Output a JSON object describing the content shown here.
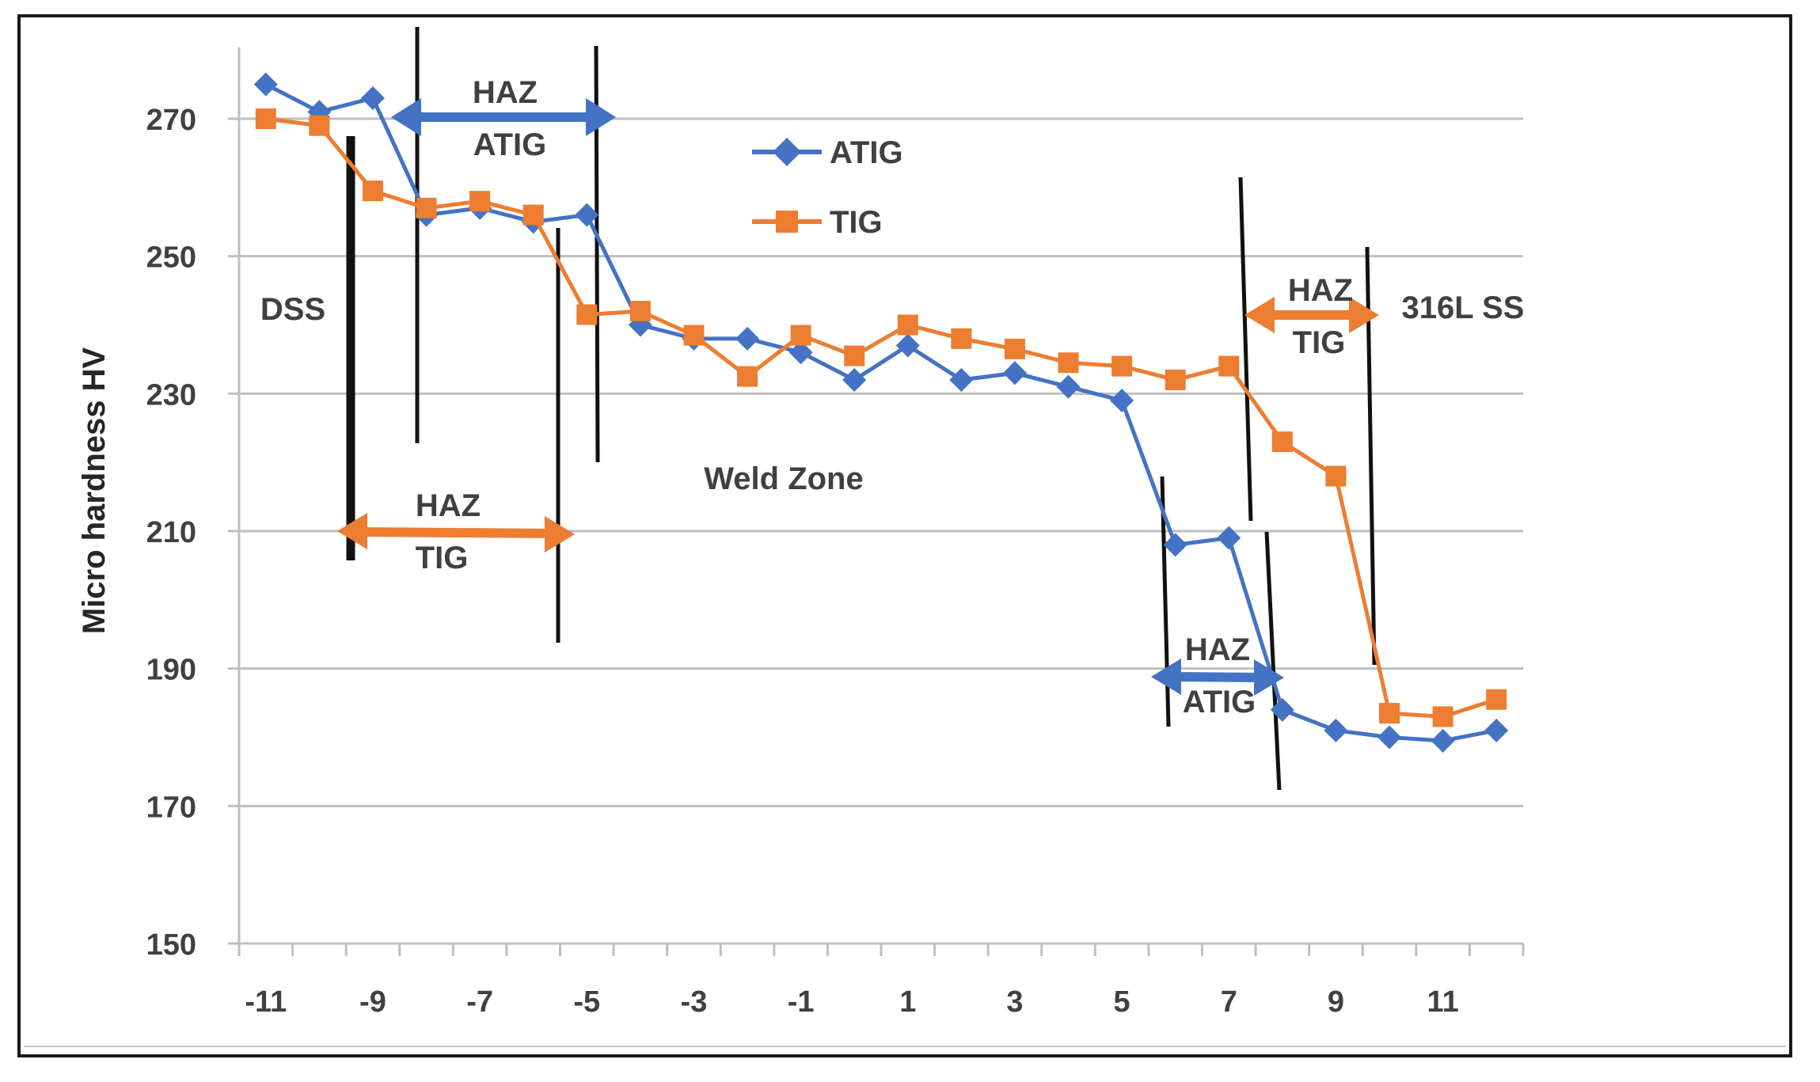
{
  "chart_data": {
    "type": "line",
    "title": "",
    "xlabel": "",
    "ylabel": "Micro hardness HV",
    "xlim": [
      -11.5,
      12.5
    ],
    "ylim": [
      150,
      280
    ],
    "x_ticks": [
      -11,
      -9,
      -7,
      -5,
      -3,
      -1,
      1,
      3,
      5,
      7,
      9,
      11
    ],
    "y_ticks": [
      150,
      170,
      190,
      210,
      230,
      250,
      270
    ],
    "grid": "horizontal",
    "legend_position": "top-center",
    "series": [
      {
        "name": "ATIG",
        "color": "#4472C4",
        "marker": "diamond",
        "x": [
          -11,
          -10,
          -9,
          -8,
          -7,
          -6,
          -5,
          -4,
          -3,
          -2,
          -1,
          0,
          1,
          2,
          3,
          4,
          5,
          6,
          7,
          8,
          9,
          10,
          11,
          12
        ],
        "y": [
          275,
          271,
          273,
          256,
          257,
          255,
          256,
          240,
          238,
          238,
          236,
          232,
          237,
          232,
          233,
          231,
          229,
          208,
          209,
          184,
          181,
          180,
          179.5,
          181
        ]
      },
      {
        "name": "TIG",
        "color": "#ED7D31",
        "marker": "square",
        "x": [
          -11,
          -10,
          -9,
          -8,
          -7,
          -6,
          -5,
          -4,
          -3,
          -2,
          -1,
          0,
          1,
          2,
          3,
          4,
          5,
          6,
          7,
          8,
          9,
          10,
          11,
          12
        ],
        "y": [
          270,
          269,
          259.5,
          257,
          258,
          256,
          241.5,
          242,
          238.5,
          232.5,
          238.5,
          235.5,
          240,
          238,
          236.5,
          234.5,
          234,
          232,
          234,
          223,
          218,
          183.5,
          183,
          185.5
        ]
      }
    ],
    "annotations": {
      "haz_atig_left": {
        "line1": "HAZ",
        "line2": "ATIG"
      },
      "haz_tig_left": {
        "line1": "HAZ",
        "line2": "TIG"
      },
      "haz_tig_right": {
        "line1": "HAZ",
        "line2": "TIG"
      },
      "haz_atig_right": {
        "line1": "HAZ",
        "line2": "ATIG"
      },
      "dss": "DSS",
      "weld_zone": "Weld Zone",
      "ss316l": "316L SS"
    }
  }
}
